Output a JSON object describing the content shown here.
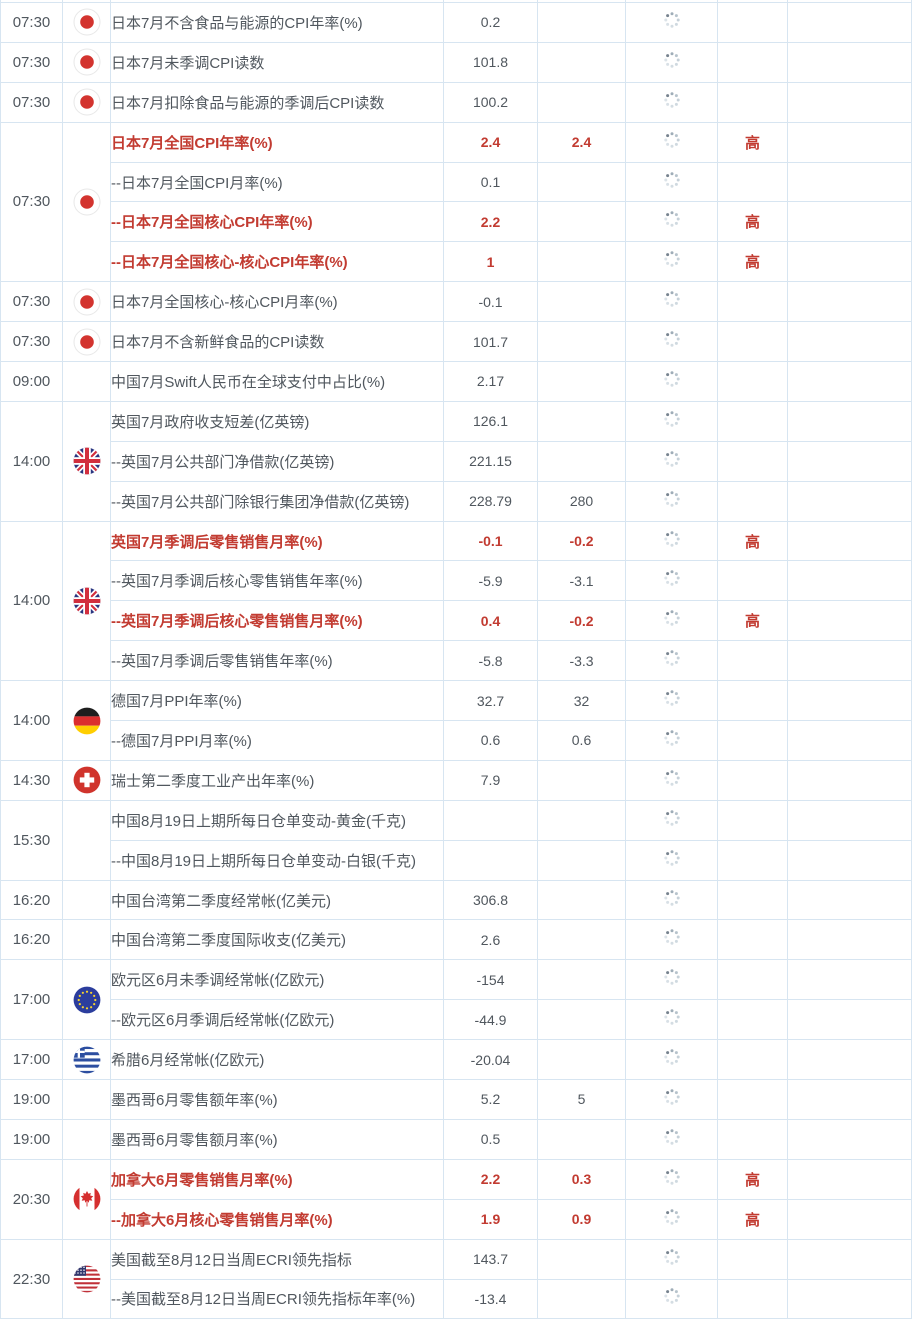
{
  "colors": {
    "accent_red": "#c23b31",
    "grid_border": "#d7e5f1",
    "text_gray": "#50575e",
    "spinner_dark": "#76828e",
    "spinner_light": "#d4dde3"
  },
  "icons": {
    "spinner": "loading-spinner-icon",
    "flags": {
      "jp": "japan-flag-icon",
      "gb": "uk-flag-icon",
      "de": "germany-flag-icon",
      "ch": "switzerland-flag-icon",
      "eu": "eu-flag-icon",
      "gr": "greece-flag-icon",
      "ca": "canada-flag-icon",
      "us": "usa-flag-icon",
      "none": "flag-cell-empty"
    }
  },
  "importance_high_label": "高",
  "groups": [
    {
      "time": "07:30",
      "flag": "jp",
      "rows": [
        {
          "event": "日本7月不含食品与能源的CPI年率(%)",
          "actual": "0.2",
          "forecast": "",
          "importance": "",
          "hl": false
        }
      ]
    },
    {
      "time": "07:30",
      "flag": "jp",
      "rows": [
        {
          "event": "日本7月未季调CPI读数",
          "actual": "101.8",
          "forecast": "",
          "importance": "",
          "hl": false
        }
      ]
    },
    {
      "time": "07:30",
      "flag": "jp",
      "rows": [
        {
          "event": "日本7月扣除食品与能源的季调后CPI读数",
          "actual": "100.2",
          "forecast": "",
          "importance": "",
          "hl": false
        }
      ]
    },
    {
      "time": "07:30",
      "flag": "jp",
      "rows": [
        {
          "event": "日本7月全国CPI年率(%)",
          "actual": "2.4",
          "forecast": "2.4",
          "importance": "高",
          "hl": true
        },
        {
          "event": "--日本7月全国CPI月率(%)",
          "actual": "0.1",
          "forecast": "",
          "importance": "",
          "hl": false
        },
        {
          "event": "--日本7月全国核心CPI年率(%)",
          "actual": "2.2",
          "forecast": "",
          "importance": "高",
          "hl": true
        },
        {
          "event": "--日本7月全国核心-核心CPI年率(%)",
          "actual": "1",
          "forecast": "",
          "importance": "高",
          "hl": true
        }
      ]
    },
    {
      "time": "07:30",
      "flag": "jp",
      "rows": [
        {
          "event": "日本7月全国核心-核心CPI月率(%)",
          "actual": "-0.1",
          "forecast": "",
          "importance": "",
          "hl": false
        }
      ]
    },
    {
      "time": "07:30",
      "flag": "jp",
      "rows": [
        {
          "event": "日本7月不含新鲜食品的CPI读数",
          "actual": "101.7",
          "forecast": "",
          "importance": "",
          "hl": false
        }
      ]
    },
    {
      "time": "09:00",
      "flag": "none",
      "rows": [
        {
          "event": "中国7月Swift人民币在全球支付中占比(%)",
          "actual": "2.17",
          "forecast": "",
          "importance": "",
          "hl": false
        }
      ]
    },
    {
      "time": "14:00",
      "flag": "gb",
      "rows": [
        {
          "event": "英国7月政府收支短差(亿英镑)",
          "actual": "126.1",
          "forecast": "",
          "importance": "",
          "hl": false
        },
        {
          "event": "--英国7月公共部门净借款(亿英镑)",
          "actual": "221.15",
          "forecast": "",
          "importance": "",
          "hl": false
        },
        {
          "event": "--英国7月公共部门除银行集团净借款(亿英镑)",
          "actual": "228.79",
          "forecast": "280",
          "importance": "",
          "hl": false
        }
      ]
    },
    {
      "time": "14:00",
      "flag": "gb",
      "rows": [
        {
          "event": "英国7月季调后零售销售月率(%)",
          "actual": "-0.1",
          "forecast": "-0.2",
          "importance": "高",
          "hl": true
        },
        {
          "event": "--英国7月季调后核心零售销售年率(%)",
          "actual": "-5.9",
          "forecast": "-3.1",
          "importance": "",
          "hl": false
        },
        {
          "event": "--英国7月季调后核心零售销售月率(%)",
          "actual": "0.4",
          "forecast": "-0.2",
          "importance": "高",
          "hl": true
        },
        {
          "event": "--英国7月季调后零售销售年率(%)",
          "actual": "-5.8",
          "forecast": "-3.3",
          "importance": "",
          "hl": false
        }
      ]
    },
    {
      "time": "14:00",
      "flag": "de",
      "rows": [
        {
          "event": "德国7月PPI年率(%)",
          "actual": "32.7",
          "forecast": "32",
          "importance": "",
          "hl": false
        },
        {
          "event": "--德国7月PPI月率(%)",
          "actual": "0.6",
          "forecast": "0.6",
          "importance": "",
          "hl": false
        }
      ]
    },
    {
      "time": "14:30",
      "flag": "ch",
      "rows": [
        {
          "event": "瑞士第二季度工业产出年率(%)",
          "actual": "7.9",
          "forecast": "",
          "importance": "",
          "hl": false
        }
      ]
    },
    {
      "time": "15:30",
      "flag": "none",
      "rows": [
        {
          "event": "中国8月19日上期所每日仓单变动-黄金(千克)",
          "actual": "",
          "forecast": "",
          "importance": "",
          "hl": false
        },
        {
          "event": "--中国8月19日上期所每日仓单变动-白银(千克)",
          "actual": "",
          "forecast": "",
          "importance": "",
          "hl": false
        }
      ]
    },
    {
      "time": "16:20",
      "flag": "none",
      "rows": [
        {
          "event": "中国台湾第二季度经常帐(亿美元)",
          "actual": "306.8",
          "forecast": "",
          "importance": "",
          "hl": false
        }
      ]
    },
    {
      "time": "16:20",
      "flag": "none",
      "rows": [
        {
          "event": "中国台湾第二季度国际收支(亿美元)",
          "actual": "2.6",
          "forecast": "",
          "importance": "",
          "hl": false
        }
      ]
    },
    {
      "time": "17:00",
      "flag": "eu",
      "rows": [
        {
          "event": "欧元区6月未季调经常帐(亿欧元)",
          "actual": "-154",
          "forecast": "",
          "importance": "",
          "hl": false
        },
        {
          "event": "--欧元区6月季调后经常帐(亿欧元)",
          "actual": "-44.9",
          "forecast": "",
          "importance": "",
          "hl": false
        }
      ]
    },
    {
      "time": "17:00",
      "flag": "gr",
      "rows": [
        {
          "event": "希腊6月经常帐(亿欧元)",
          "actual": "-20.04",
          "forecast": "",
          "importance": "",
          "hl": false
        }
      ]
    },
    {
      "time": "19:00",
      "flag": "none",
      "rows": [
        {
          "event": "墨西哥6月零售额年率(%)",
          "actual": "5.2",
          "forecast": "5",
          "importance": "",
          "hl": false
        }
      ]
    },
    {
      "time": "19:00",
      "flag": "none",
      "rows": [
        {
          "event": "墨西哥6月零售额月率(%)",
          "actual": "0.5",
          "forecast": "",
          "importance": "",
          "hl": false
        }
      ]
    },
    {
      "time": "20:30",
      "flag": "ca",
      "rows": [
        {
          "event": "加拿大6月零售销售月率(%)",
          "actual": "2.2",
          "forecast": "0.3",
          "importance": "高",
          "hl": true
        },
        {
          "event": "--加拿大6月核心零售销售月率(%)",
          "actual": "1.9",
          "forecast": "0.9",
          "importance": "高",
          "hl": true
        }
      ]
    },
    {
      "time": "22:30",
      "flag": "us",
      "rows": [
        {
          "event": "美国截至8月12日当周ECRI领先指标",
          "actual": "143.7",
          "forecast": "",
          "importance": "",
          "hl": false
        },
        {
          "event": "--美国截至8月12日当周ECRI领先指标年率(%)",
          "actual": "-13.4",
          "forecast": "",
          "importance": "",
          "hl": false
        }
      ]
    }
  ]
}
